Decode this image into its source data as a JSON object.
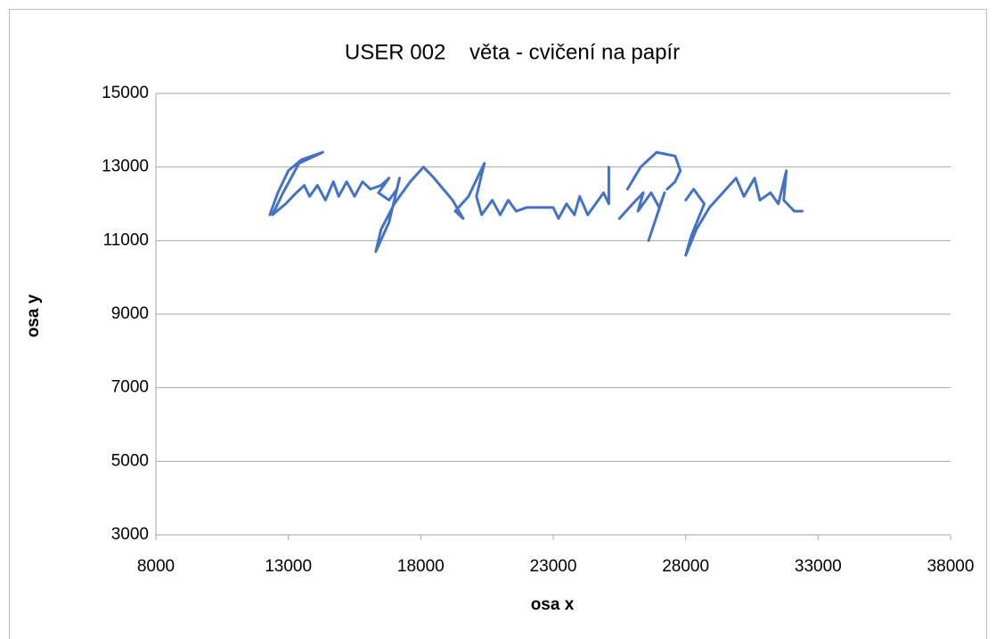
{
  "chart_data": {
    "type": "line",
    "title": "USER 002    věta - cvičení na papír",
    "x_label": "osa x",
    "y_label": "osa y",
    "xlim": [
      8000,
      38000
    ],
    "xticks": [
      8000,
      13000,
      18000,
      23000,
      28000,
      33000,
      38000
    ],
    "ylim": [
      3000,
      15000
    ],
    "yticks": [
      3000,
      5000,
      7000,
      9000,
      11000,
      13000,
      15000
    ],
    "grid": true,
    "x": [
      12300,
      12600,
      13000,
      13500,
      14300,
      13400,
      12800,
      12400,
      12900,
      13300,
      13600,
      13800,
      14100,
      14400,
      14700,
      14900,
      15200,
      15500,
      15800,
      16100,
      16500,
      16800,
      16400,
      16800,
      17100,
      17200,
      16800,
      16300,
      16500,
      17000,
      17600,
      18100,
      18500,
      19200,
      19600,
      19300,
      19800,
      20200,
      20400,
      20100,
      20300,
      20700,
      21000,
      21300,
      21600,
      22000,
      23000,
      23200,
      23500,
      23800,
      24000,
      24300,
      24600,
      24900,
      25100,
      25100,
      null,
      25500,
      26000,
      26400,
      26200,
      26700,
      27000,
      27200,
      26600,
      null,
      25800,
      26300,
      26900,
      27600,
      27800,
      27600,
      27300,
      null,
      28000,
      28300,
      28700,
      28200,
      28000,
      28400,
      28900,
      29400,
      29900,
      30200,
      30600,
      30800,
      31200,
      31500,
      31800,
      31700,
      32100,
      32400
    ],
    "series": [
      {
        "name": "USER 002",
        "color": "#4472c4",
        "values": [
          11700,
          12300,
          12900,
          13200,
          13400,
          13100,
          12300,
          11700,
          12000,
          12300,
          12500,
          12200,
          12500,
          12100,
          12600,
          12200,
          12600,
          12200,
          12600,
          12400,
          12500,
          12700,
          12300,
          12100,
          12400,
          12700,
          11500,
          10700,
          11300,
          12000,
          12600,
          13000,
          12700,
          12100,
          11600,
          11800,
          12200,
          12800,
          13100,
          12200,
          11700,
          12100,
          11700,
          12100,
          11800,
          11900,
          11900,
          11600,
          12000,
          11700,
          12200,
          11700,
          12000,
          12300,
          12000,
          13000,
          null,
          11600,
          12000,
          12300,
          11800,
          12300,
          11900,
          12300,
          11000,
          null,
          12400,
          13000,
          13400,
          13300,
          12900,
          12600,
          12400,
          null,
          12100,
          12400,
          12000,
          11100,
          10600,
          11300,
          11900,
          12300,
          12700,
          12200,
          12700,
          12100,
          12300,
          12000,
          12900,
          12100,
          11800,
          11800
        ]
      }
    ]
  }
}
